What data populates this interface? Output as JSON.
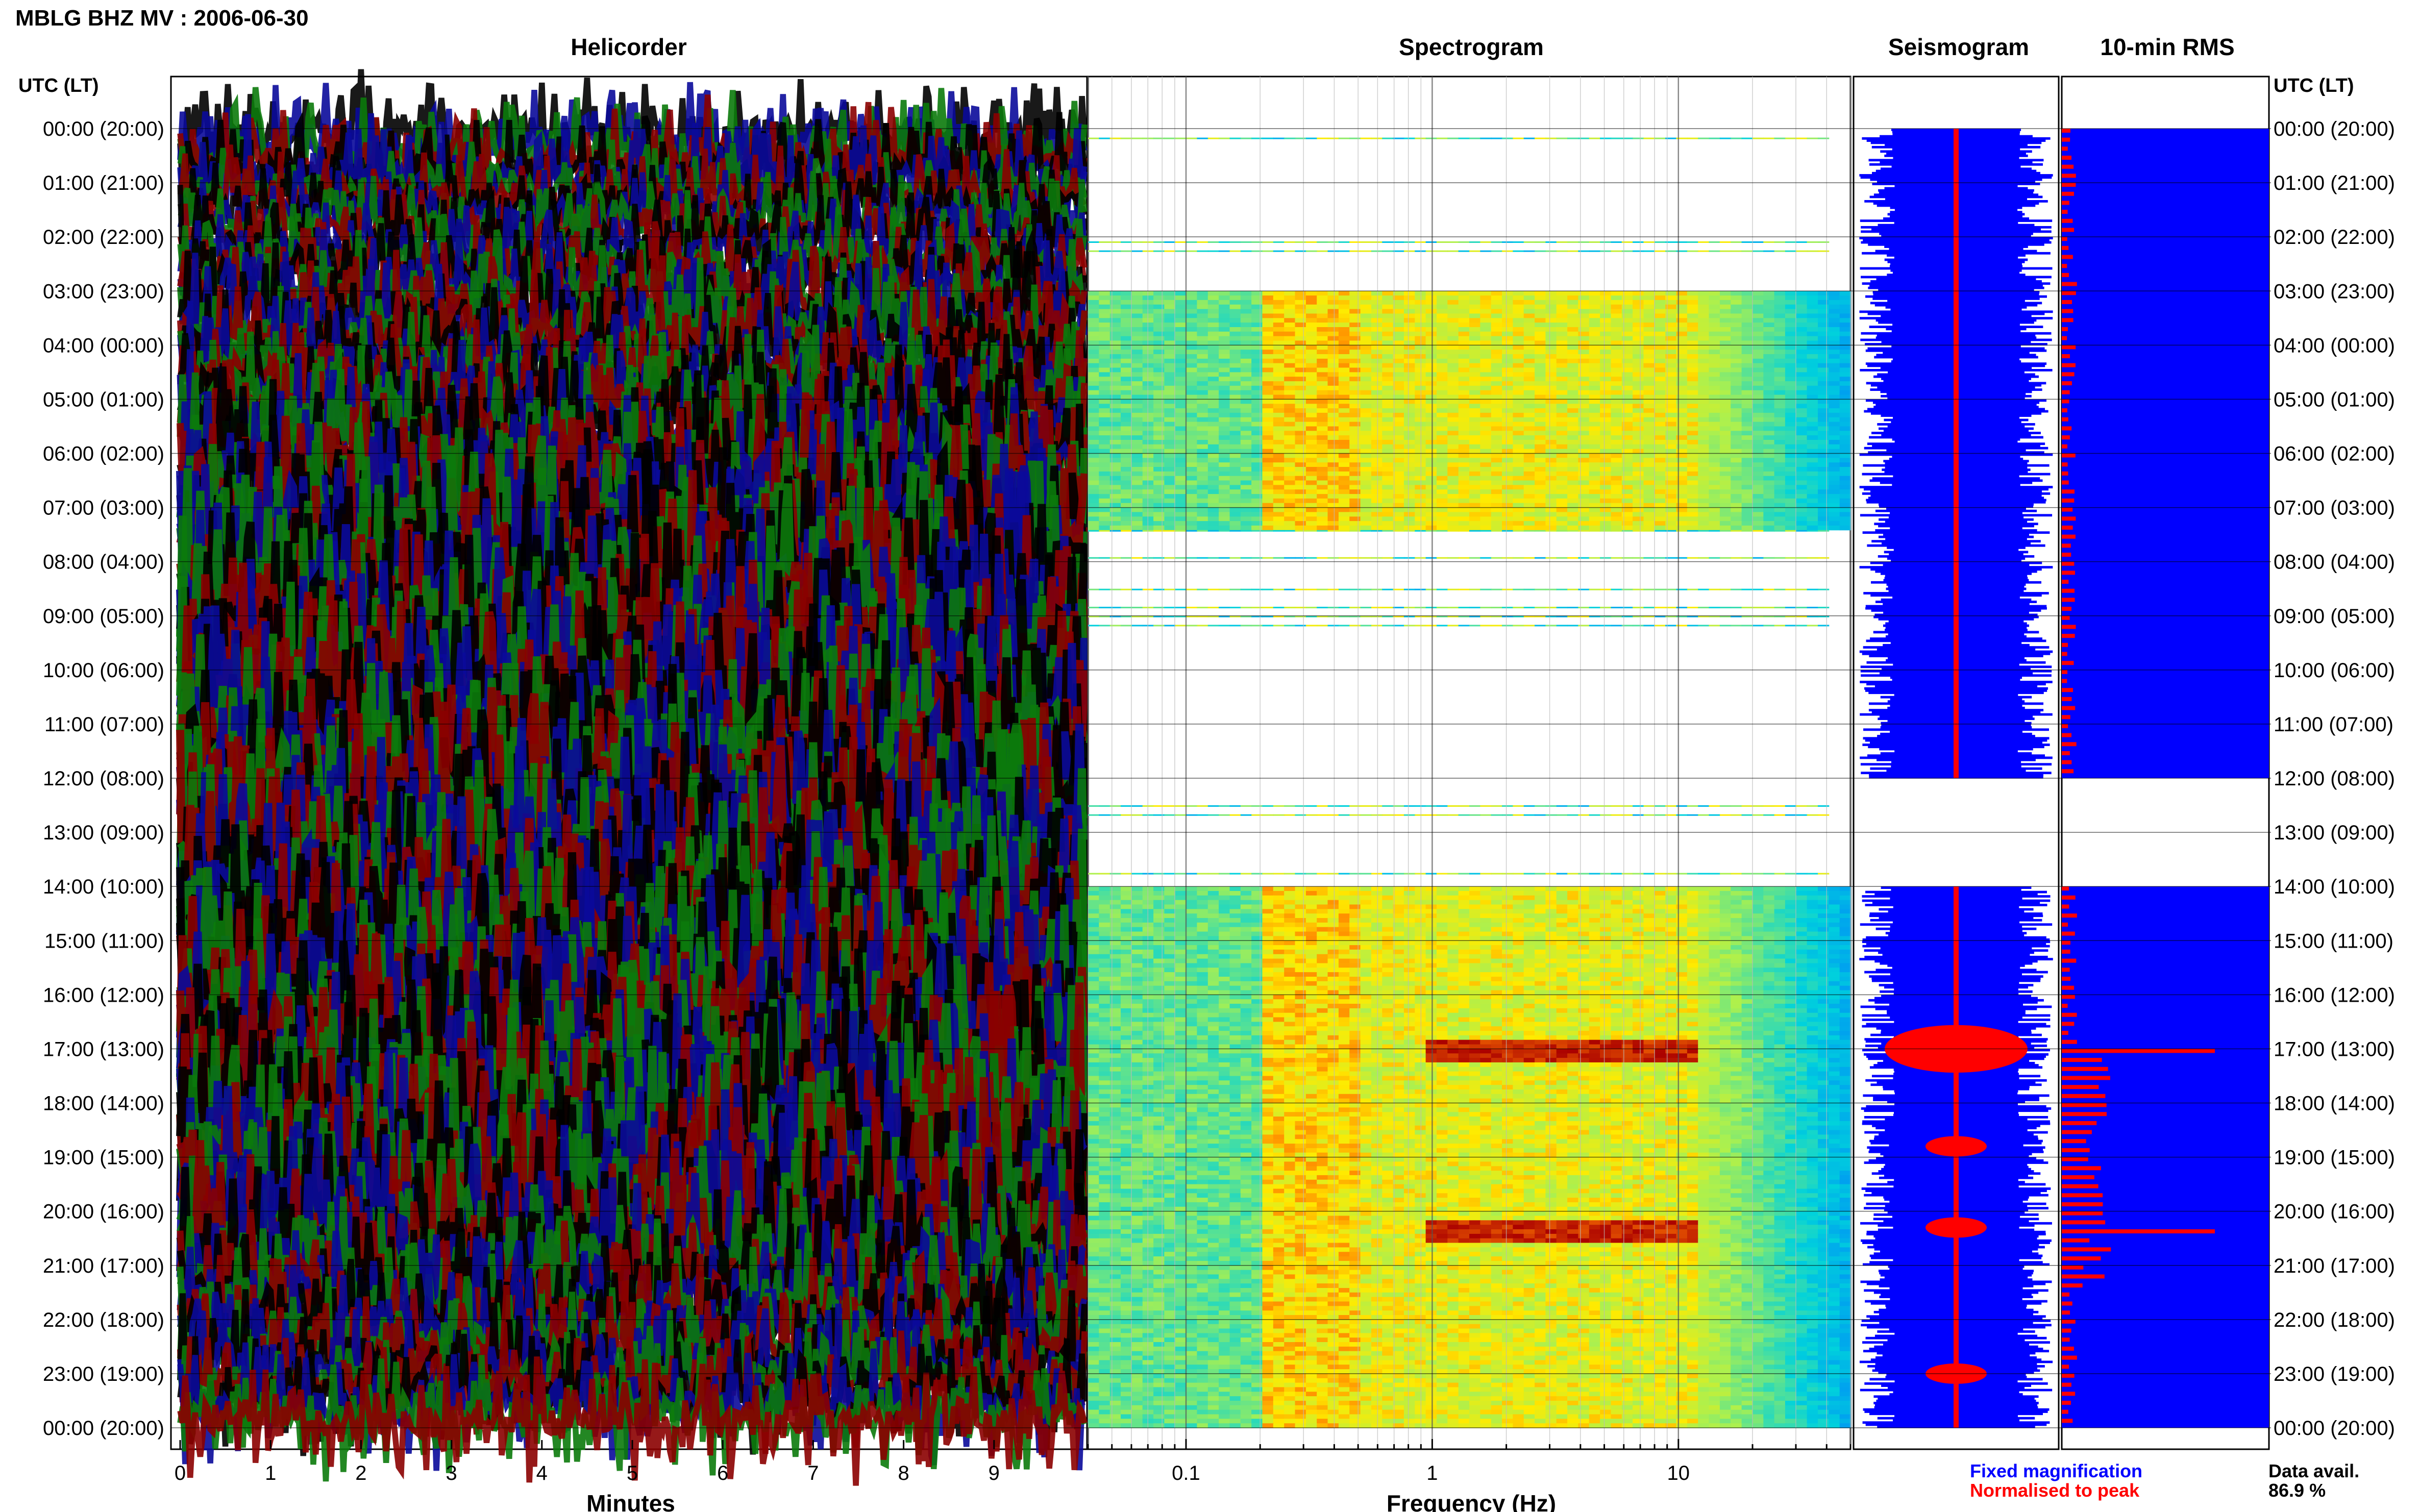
{
  "page": {
    "title": "MBLG BHZ MV : 2006-06-30"
  },
  "chart_data": [
    {
      "type": "line",
      "title": "Helicorder",
      "xlabel": "Minutes",
      "x_ticks": [
        0,
        1,
        2,
        3,
        4,
        5,
        6,
        7,
        8,
        9
      ],
      "xlim": [
        0,
        10
      ],
      "ylabel_left": "UTC (LT)",
      "ylabel_right": "UTC (LT)",
      "y_ticks": [
        "00:00 (20:00)",
        "01:00 (21:00)",
        "02:00 (22:00)",
        "03:00 (23:00)",
        "04:00 (00:00)",
        "05:00 (01:00)",
        "06:00 (02:00)",
        "07:00 (03:00)",
        "08:00 (04:00)",
        "09:00 (05:00)",
        "10:00 (06:00)",
        "11:00 (07:00)",
        "12:00 (08:00)",
        "13:00 (09:00)",
        "14:00 (10:00)",
        "15:00 (11:00)",
        "16:00 (12:00)",
        "17:00 (13:00)",
        "18:00 (14:00)",
        "19:00 (15:00)",
        "20:00 (16:00)",
        "21:00 (17:00)",
        "22:00 (18:00)",
        "23:00 (19:00)",
        "00:00 (20:00)"
      ],
      "trace_colors": [
        "#000000",
        "#0a0a9a",
        "#0b7a0b",
        "#8b0000"
      ],
      "band_amplitude_by_hour": [
        0.55,
        0.45,
        0.5,
        0.6,
        0.55,
        0.7,
        0.8,
        0.95,
        1.0,
        1.0,
        1.0,
        1.0,
        1.0,
        1.0,
        1.0,
        1.0,
        1.0,
        1.0,
        1.0,
        1.0,
        0.9,
        0.7,
        0.6,
        0.55
      ]
    },
    {
      "type": "heatmap",
      "title": "Spectrogram",
      "xlabel": "Frequency (Hz)",
      "x_scale": "log",
      "xlim": [
        0.04,
        50
      ],
      "x_ticks": [
        0.1,
        1,
        10
      ],
      "x_tick_labels": [
        "0.1",
        "1",
        "10"
      ],
      "data_gaps_utc_hours": [
        [
          0,
          3
        ],
        [
          7.4,
          12
        ],
        [
          12,
          14
        ]
      ],
      "strong_energy_band_hz": [
        0.9,
        12
      ],
      "strong_energy_times_utc_hours": [
        17.0,
        20.3
      ]
    },
    {
      "type": "line",
      "title": "Seismogram",
      "data_gaps_utc_hours": [
        [
          12,
          14
        ]
      ],
      "peak_times_utc_hours": [
        17.0,
        18.8,
        20.3,
        23.0
      ],
      "colors": {
        "fixed": "#0000ff",
        "normalised": "#ff0000"
      }
    },
    {
      "type": "bar",
      "title": "10-min RMS",
      "orientation": "horizontal",
      "data_gaps_utc_hours": [
        [
          12,
          14
        ]
      ],
      "highlighted_times_utc_hours": [
        17.0,
        20.3
      ],
      "colors": {
        "fixed": "#0000ff",
        "normalised": "#ff0000"
      }
    }
  ],
  "legend": {
    "fixed": {
      "label": "Fixed magnification",
      "color": "#0000ff"
    },
    "normalised": {
      "label": "Normalised to peak",
      "color": "#ff0000"
    }
  },
  "availability": {
    "label": "Data avail.",
    "value": "86.9 %"
  }
}
